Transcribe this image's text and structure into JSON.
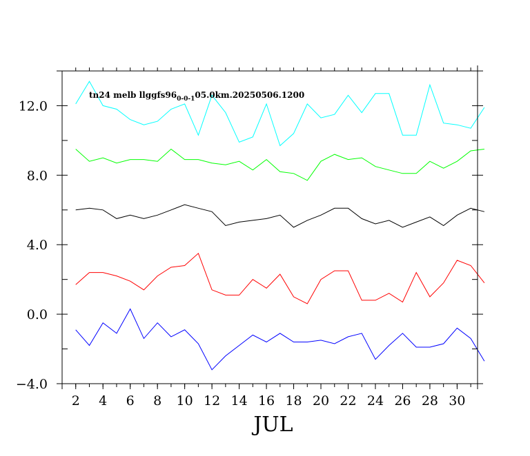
{
  "chart_data": {
    "type": "line",
    "title_main": "tn24 melb llggfs96",
    "title_sub": "0-0-1",
    "title_tail": "05.0km.20250506.1200",
    "xlabel": "JUL",
    "ylabel": "",
    "xlim": [
      1,
      31.5
    ],
    "ylim": [
      -4,
      14
    ],
    "x_ticks": [
      2,
      4,
      6,
      8,
      10,
      12,
      14,
      16,
      18,
      20,
      22,
      24,
      26,
      28,
      30
    ],
    "x_tick_labels": [
      "2",
      "4",
      "6",
      "8",
      "10",
      "12",
      "14",
      "16",
      "18",
      "20",
      "22",
      "24",
      "26",
      "28",
      "30"
    ],
    "y_ticks": [
      -4,
      0,
      4,
      8,
      12
    ],
    "y_tick_labels": [
      "−4.0",
      "0.0",
      "4.0",
      "8.0",
      "12.0"
    ],
    "grid": false,
    "x": [
      2,
      3,
      4,
      5,
      6,
      7,
      8,
      9,
      10,
      11,
      12,
      13,
      14,
      15,
      16,
      17,
      18,
      19,
      20,
      21,
      22,
      23,
      24,
      25,
      26,
      27,
      28,
      29,
      30,
      31,
      32
    ],
    "series": [
      {
        "color": "#00ffff",
        "values": [
          12.1,
          13.4,
          12.0,
          11.8,
          11.2,
          10.9,
          11.1,
          11.8,
          12.1,
          10.3,
          12.6,
          11.6,
          9.9,
          10.2,
          12.1,
          9.7,
          10.4,
          12.1,
          11.3,
          11.5,
          12.6,
          11.6,
          12.7,
          12.7,
          10.3,
          10.3,
          13.2,
          11.0,
          10.9,
          10.7,
          11.9
        ]
      },
      {
        "color": "#00ff00",
        "values": [
          9.5,
          8.8,
          9.0,
          8.7,
          8.9,
          8.9,
          8.8,
          9.5,
          8.9,
          8.9,
          8.7,
          8.6,
          8.8,
          8.3,
          8.9,
          8.2,
          8.1,
          7.7,
          8.8,
          9.2,
          8.9,
          9.0,
          8.5,
          8.3,
          8.1,
          8.1,
          8.8,
          8.4,
          8.8,
          9.4,
          9.5
        ]
      },
      {
        "color": "#000000",
        "values": [
          6.0,
          6.1,
          6.0,
          5.5,
          5.7,
          5.5,
          5.7,
          6.0,
          6.3,
          6.1,
          5.9,
          5.1,
          5.3,
          5.4,
          5.5,
          5.7,
          5.0,
          5.4,
          5.7,
          6.1,
          6.1,
          5.5,
          5.2,
          5.4,
          5.0,
          5.3,
          5.6,
          5.1,
          5.7,
          6.1,
          5.9
        ]
      },
      {
        "color": "#ff0000",
        "values": [
          1.7,
          2.4,
          2.4,
          2.2,
          1.9,
          1.4,
          2.2,
          2.7,
          2.8,
          3.5,
          1.4,
          1.1,
          1.1,
          2.0,
          1.5,
          2.3,
          1.0,
          0.6,
          2.0,
          2.5,
          2.5,
          0.8,
          0.8,
          1.2,
          0.7,
          2.4,
          1.0,
          1.8,
          3.1,
          2.8,
          1.8
        ]
      },
      {
        "color": "#0000ff",
        "values": [
          -0.9,
          -1.8,
          -0.5,
          -1.1,
          0.3,
          -1.4,
          -0.5,
          -1.3,
          -0.9,
          -1.7,
          -3.2,
          -2.4,
          -1.8,
          -1.2,
          -1.6,
          -1.1,
          -1.6,
          -1.6,
          -1.5,
          -1.7,
          -1.3,
          -1.1,
          -2.6,
          -1.8,
          -1.1,
          -1.9,
          -1.9,
          -1.7,
          -0.8,
          -1.4,
          -2.7
        ]
      }
    ]
  }
}
